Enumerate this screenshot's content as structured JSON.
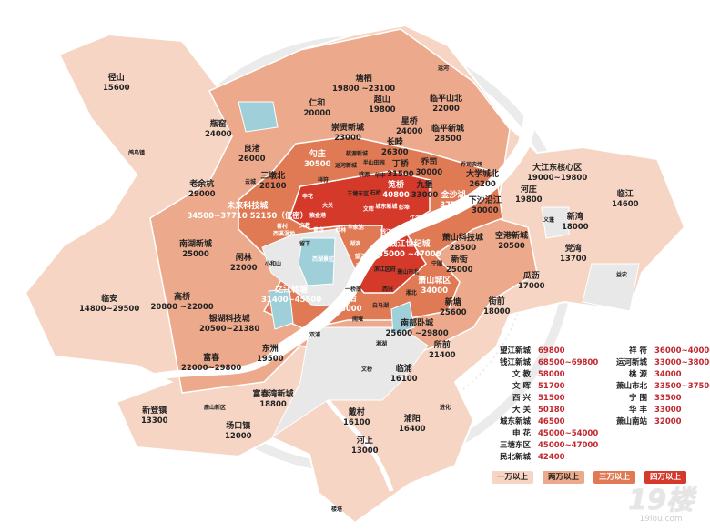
{
  "colors": {
    "tier1": "#f6d5c4",
    "tier2": "#eca98b",
    "tier3": "#e07a55",
    "tier4": "#d5392a",
    "unpriced": "#e8e8e8",
    "water": "#9fcfd8",
    "price_text": "#c0272d"
  },
  "labels": [
    {
      "name": "径山",
      "price": "15600"
    },
    {
      "name": "鸬鸟镇",
      "price": ""
    },
    {
      "name": "瓶窑",
      "price": "24000"
    },
    {
      "name": "良渚",
      "price": "26000"
    },
    {
      "name": "仁和",
      "price": "20000"
    },
    {
      "name": "塘栖",
      "price": "19800 ~23100"
    },
    {
      "name": "超山",
      "price": "19800"
    },
    {
      "name": "临平山北",
      "price": "22000"
    },
    {
      "name": "运河",
      "price": ""
    },
    {
      "name": "崇贤新城",
      "price": "23000"
    },
    {
      "name": "星桥",
      "price": "24000"
    },
    {
      "name": "临平新城",
      "price": "28500"
    },
    {
      "name": "勾庄",
      "price": "30500"
    },
    {
      "name": "三墩北",
      "price": "28100"
    },
    {
      "name": "云城",
      "price": ""
    },
    {
      "name": "老余杭",
      "price": "29000"
    },
    {
      "name": "未来科技城",
      "price": "34500~37710 52150（低密）"
    },
    {
      "name": "南湖新城",
      "price": "25000"
    },
    {
      "name": "闲林",
      "price": "22000"
    },
    {
      "name": "临安",
      "price": "14800~29500"
    },
    {
      "name": "高桥",
      "price": "20800 ~22000"
    },
    {
      "name": "银湖科技城",
      "price": "20500~21380"
    },
    {
      "name": "富春",
      "price": "22000~29800"
    },
    {
      "name": "东洲",
      "price": "19500"
    },
    {
      "name": "新登镇",
      "price": "13300"
    },
    {
      "name": "鹿山新区",
      "price": ""
    },
    {
      "name": "富春湾新城",
      "price": "18800"
    },
    {
      "name": "场口镇",
      "price": "12000"
    },
    {
      "name": "小和山",
      "price": ""
    },
    {
      "name": "留下",
      "price": ""
    },
    {
      "name": "之江转塘",
      "price": "31400~45500"
    },
    {
      "name": "双浦",
      "price": ""
    },
    {
      "name": "一桥南",
      "price": ""
    },
    {
      "name": "浦沿",
      "price": "38000"
    },
    {
      "name": "白马湖",
      "price": ""
    },
    {
      "name": "闻堰",
      "price": ""
    },
    {
      "name": "湘湖",
      "price": ""
    },
    {
      "name": "文桥",
      "price": ""
    },
    {
      "name": "临浦",
      "price": "16100"
    },
    {
      "name": "所前",
      "price": "21400"
    },
    {
      "name": "戴村",
      "price": "16100"
    },
    {
      "name": "浦阳",
      "price": "16400"
    },
    {
      "name": "进化",
      "price": ""
    },
    {
      "name": "河上",
      "price": "13000"
    },
    {
      "name": "楼塔",
      "price": ""
    },
    {
      "name": "钱江世纪城",
      "price": "45000 ~47000"
    },
    {
      "name": "宁围",
      "price": ""
    },
    {
      "name": "滨江区府",
      "price": ""
    },
    {
      "name": "萧山市北",
      "price": ""
    },
    {
      "name": "西兴",
      "price": ""
    },
    {
      "name": "湘北",
      "price": ""
    },
    {
      "name": "萧山城区",
      "price": "34000"
    },
    {
      "name": "新街",
      "price": "25000"
    },
    {
      "name": "萧山科技城",
      "price": "28500"
    },
    {
      "name": "新塘",
      "price": "25600"
    },
    {
      "name": "南部卧城",
      "price": "25600 ~29800"
    },
    {
      "name": "街前",
      "price": "18000"
    },
    {
      "name": "瓜沥",
      "price": "17000"
    },
    {
      "name": "空港新城",
      "price": "20500"
    },
    {
      "name": "河庄",
      "price": "19800"
    },
    {
      "name": "大江东核心区",
      "price": "19000~19800"
    },
    {
      "name": "临江",
      "price": "14600"
    },
    {
      "name": "义蓬",
      "price": ""
    },
    {
      "name": "新湾",
      "price": "18000"
    },
    {
      "name": "党湾",
      "price": "13700"
    },
    {
      "name": "益农",
      "price": ""
    },
    {
      "name": "乔司",
      "price": "30000"
    },
    {
      "name": "乔司农场",
      "price": ""
    },
    {
      "name": "大学城北",
      "price": "26200"
    },
    {
      "name": "金沙湖",
      "price": "37500"
    },
    {
      "name": "下沙沿江",
      "price": "30000"
    },
    {
      "name": "长睦",
      "price": "26300"
    },
    {
      "name": "丁桥",
      "price": "31500"
    },
    {
      "name": "笕桥",
      "price": "40800"
    },
    {
      "name": "九堡",
      "price": "33000"
    },
    {
      "name": "运河新城",
      "price": ""
    },
    {
      "name": "桃源新城",
      "price": ""
    },
    {
      "name": "半山田园",
      "price": ""
    },
    {
      "name": "祥符",
      "price": ""
    },
    {
      "name": "桃源",
      "price": ""
    },
    {
      "name": "华丰",
      "price": ""
    },
    {
      "name": "石桥",
      "price": ""
    },
    {
      "name": "三塘东区",
      "price": ""
    },
    {
      "name": "申花",
      "price": ""
    },
    {
      "name": "大关",
      "price": ""
    },
    {
      "name": "文晖",
      "price": ""
    },
    {
      "name": "城东新城",
      "price": ""
    },
    {
      "name": "彭埠",
      "price": ""
    },
    {
      "name": "江滨新城",
      "price": ""
    },
    {
      "name": "紫金港",
      "price": ""
    },
    {
      "name": "蒋村",
      "price": ""
    },
    {
      "name": "文教",
      "price": ""
    },
    {
      "name": "西溪湿地",
      "price": ""
    },
    {
      "name": "黄龙",
      "price": ""
    },
    {
      "name": "武林",
      "price": ""
    },
    {
      "name": "华家池",
      "price": ""
    },
    {
      "name": "钱江新城",
      "price": ""
    },
    {
      "name": "湖滨",
      "price": ""
    },
    {
      "name": "望江新城",
      "price": ""
    },
    {
      "name": "南星桥",
      "price": ""
    },
    {
      "name": "西湖景区",
      "price": ""
    }
  ],
  "price_table": {
    "left": [
      {
        "name": "望江新城",
        "price": "69800"
      },
      {
        "name": "钱江新城",
        "price": "68500~69800"
      },
      {
        "name": "文 教",
        "price": "58000"
      },
      {
        "name": "文 晖",
        "price": "51700"
      },
      {
        "name": "西 兴",
        "price": "51500"
      },
      {
        "name": "大 关",
        "price": "50180"
      },
      {
        "name": "城东新城",
        "price": "46500"
      },
      {
        "name": "申 花",
        "price": "45000~54000"
      },
      {
        "name": "三塘东区",
        "price": "45000~47000"
      },
      {
        "name": "民北新城",
        "price": "42400"
      }
    ],
    "right": [
      {
        "name": "祥 符",
        "price": "36000~40000"
      },
      {
        "name": "运河新城",
        "price": "33000~38000"
      },
      {
        "name": "桃 源",
        "price": "34000"
      },
      {
        "name": "萧山市北",
        "price": "33500~37500"
      },
      {
        "name": "宁 围",
        "price": "33500"
      },
      {
        "name": "华 丰",
        "price": "33000"
      },
      {
        "name": "萧山南站",
        "price": "32000"
      }
    ]
  },
  "legend": [
    {
      "label": "一万以上",
      "color": "#f6d5c4"
    },
    {
      "label": "两万以上",
      "color": "#eca98b"
    },
    {
      "label": "三万以上",
      "color": "#e07a55"
    },
    {
      "label": "四万以上",
      "color": "#d5392a"
    }
  ],
  "logo": {
    "mark": "19楼",
    "url_text": "19lou.com"
  }
}
